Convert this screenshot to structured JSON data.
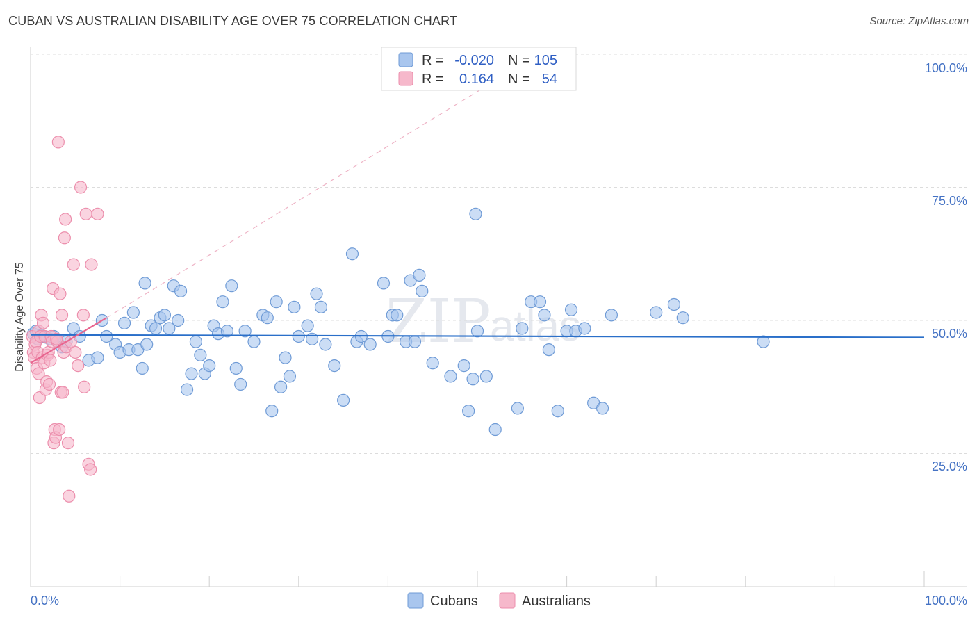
{
  "title": "CUBAN VS AUSTRALIAN DISABILITY AGE OVER 75 CORRELATION CHART",
  "source": "Source: ZipAtlas.com",
  "watermark": {
    "main": "ZIP",
    "sub": "atlas"
  },
  "colors": {
    "cubans_fill": "#a9c6ee",
    "cubans_stroke": "#6f9bd6",
    "cubans_line": "#2a6fc9",
    "australians_fill": "#f6b8cb",
    "australians_stroke": "#ec8eac",
    "australians_line": "#e8658f",
    "grid": "#dcdcdc",
    "tick_text": "#4472c4"
  },
  "legend_top": {
    "rows": [
      {
        "r_label": "R =",
        "r_value": "-0.020",
        "n_label": "N =",
        "n_value": "105"
      },
      {
        "r_label": "R =",
        "r_value": "0.164",
        "n_label": "N =",
        "n_value": "54"
      }
    ]
  },
  "chart_data": {
    "type": "scatter",
    "title": "CUBAN VS AUSTRALIAN DISABILITY AGE OVER 75 CORRELATION CHART",
    "xlabel": "",
    "ylabel": "Disability Age Over 75",
    "xlim": [
      0,
      100
    ],
    "ylim": [
      0,
      100
    ],
    "x_tick_labels": [
      "0.0%",
      "100.0%"
    ],
    "y_tick_labels": [
      "25.0%",
      "50.0%",
      "75.0%",
      "100.0%"
    ],
    "y_ticks": [
      25,
      50,
      75,
      100
    ],
    "legend": [
      "Cubans",
      "Australians"
    ],
    "series": [
      {
        "name": "Cubans",
        "points": [
          [
            0.3,
            47.5
          ],
          [
            0.6,
            48
          ],
          [
            0.8,
            46.5
          ],
          [
            1.2,
            47.2
          ],
          [
            1.5,
            47
          ],
          [
            1.8,
            46.8
          ],
          [
            2.2,
            46.5
          ],
          [
            2.6,
            47
          ],
          [
            3,
            46
          ],
          [
            3.5,
            45
          ],
          [
            4,
            46
          ],
          [
            4.8,
            48.5
          ],
          [
            5.5,
            47
          ],
          [
            6.5,
            42.5
          ],
          [
            7.5,
            43
          ],
          [
            8,
            50
          ],
          [
            8.5,
            47
          ],
          [
            9.5,
            45.5
          ],
          [
            10,
            44
          ],
          [
            10.5,
            49.5
          ],
          [
            11,
            44.5
          ],
          [
            11.5,
            51.5
          ],
          [
            12,
            44.5
          ],
          [
            12.5,
            41
          ],
          [
            12.8,
            57
          ],
          [
            13,
            45.5
          ],
          [
            13.5,
            49
          ],
          [
            14,
            48.5
          ],
          [
            14.5,
            50.5
          ],
          [
            15,
            51
          ],
          [
            15.5,
            48.5
          ],
          [
            16,
            56.5
          ],
          [
            16.5,
            50
          ],
          [
            16.8,
            55.5
          ],
          [
            17.5,
            37
          ],
          [
            18,
            40
          ],
          [
            18.5,
            46
          ],
          [
            19,
            43.5
          ],
          [
            19.5,
            40
          ],
          [
            20,
            41.5
          ],
          [
            20.5,
            49
          ],
          [
            21,
            47.5
          ],
          [
            21.5,
            53.5
          ],
          [
            22,
            48
          ],
          [
            22.5,
            56.5
          ],
          [
            23,
            41
          ],
          [
            23.5,
            38
          ],
          [
            24,
            48
          ],
          [
            25,
            46
          ],
          [
            26,
            51
          ],
          [
            26.5,
            50.5
          ],
          [
            27,
            33
          ],
          [
            27.5,
            53.5
          ],
          [
            28,
            37.5
          ],
          [
            28.5,
            43
          ],
          [
            29,
            39.5
          ],
          [
            29.5,
            52.5
          ],
          [
            30,
            47
          ],
          [
            31,
            49
          ],
          [
            31.5,
            46.5
          ],
          [
            32,
            55
          ],
          [
            32.5,
            52.5
          ],
          [
            33,
            45.5
          ],
          [
            34,
            41.5
          ],
          [
            35,
            35
          ],
          [
            36,
            62.5
          ],
          [
            36.5,
            46
          ],
          [
            37,
            47
          ],
          [
            38,
            45.5
          ],
          [
            39.5,
            57
          ],
          [
            40,
            47
          ],
          [
            40.5,
            51
          ],
          [
            41,
            51
          ],
          [
            42,
            46
          ],
          [
            42.5,
            57.5
          ],
          [
            43,
            46
          ],
          [
            43.5,
            58.5
          ],
          [
            43.8,
            55.5
          ],
          [
            45,
            42
          ],
          [
            47,
            39.5
          ],
          [
            48.5,
            41.5
          ],
          [
            49,
            33
          ],
          [
            49.5,
            39
          ],
          [
            49.8,
            70
          ],
          [
            50,
            48
          ],
          [
            51,
            39.5
          ],
          [
            52,
            29.5
          ],
          [
            54.5,
            33.5
          ],
          [
            55,
            48.5
          ],
          [
            56,
            53.5
          ],
          [
            57,
            53.5
          ],
          [
            57.5,
            51
          ],
          [
            58,
            44.5
          ],
          [
            59,
            33
          ],
          [
            60,
            48
          ],
          [
            60.5,
            52
          ],
          [
            61,
            48
          ],
          [
            62,
            48.5
          ],
          [
            63,
            34.5
          ],
          [
            64,
            33.5
          ],
          [
            65,
            51
          ],
          [
            70,
            51.5
          ],
          [
            72,
            53
          ],
          [
            73,
            50.5
          ],
          [
            82,
            46
          ]
        ]
      },
      {
        "name": "Australians",
        "points": [
          [
            0.2,
            47
          ],
          [
            0.3,
            44
          ],
          [
            0.4,
            43
          ],
          [
            0.5,
            45.5
          ],
          [
            0.6,
            46
          ],
          [
            0.7,
            41
          ],
          [
            0.8,
            44
          ],
          [
            0.9,
            48
          ],
          [
            1,
            35.5
          ],
          [
            1.1,
            47
          ],
          [
            1.2,
            51
          ],
          [
            1.3,
            43
          ],
          [
            1.4,
            49.5
          ],
          [
            1.5,
            42
          ],
          [
            1.6,
            47
          ],
          [
            1.7,
            37
          ],
          [
            1.8,
            38.5
          ],
          [
            1.9,
            43.5
          ],
          [
            2,
            44
          ],
          [
            2.1,
            38
          ],
          [
            2.2,
            42.5
          ],
          [
            2.3,
            47
          ],
          [
            2.4,
            46
          ],
          [
            2.5,
            56
          ],
          [
            2.6,
            27
          ],
          [
            2.7,
            29.5
          ],
          [
            2.8,
            28
          ],
          [
            3,
            46
          ],
          [
            3.1,
            83.5
          ],
          [
            3.2,
            29.5
          ],
          [
            3.3,
            55
          ],
          [
            3.4,
            36.5
          ],
          [
            3.5,
            51
          ],
          [
            3.6,
            36.5
          ],
          [
            3.7,
            44
          ],
          [
            3.8,
            65.5
          ],
          [
            3.9,
            69
          ],
          [
            4,
            45
          ],
          [
            4.2,
            27
          ],
          [
            4.3,
            17
          ],
          [
            4.5,
            46
          ],
          [
            4.8,
            60.5
          ],
          [
            5,
            44
          ],
          [
            5.3,
            41.5
          ],
          [
            5.6,
            75
          ],
          [
            5.9,
            51
          ],
          [
            6,
            37.5
          ],
          [
            6.2,
            70
          ],
          [
            6.5,
            23
          ],
          [
            6.7,
            22
          ],
          [
            6.8,
            60.5
          ],
          [
            7.5,
            70
          ],
          [
            0.9,
            40
          ],
          [
            2.9,
            46.5
          ]
        ]
      }
    ],
    "trend_lines": [
      {
        "series": "Cubans",
        "from": [
          0,
          47.3
        ],
        "to": [
          100,
          46.8
        ]
      },
      {
        "series": "Australians",
        "from": [
          0,
          42
        ],
        "to": [
          8.5,
          50.5
        ],
        "dashed_to": [
          51,
          94
        ]
      }
    ]
  }
}
